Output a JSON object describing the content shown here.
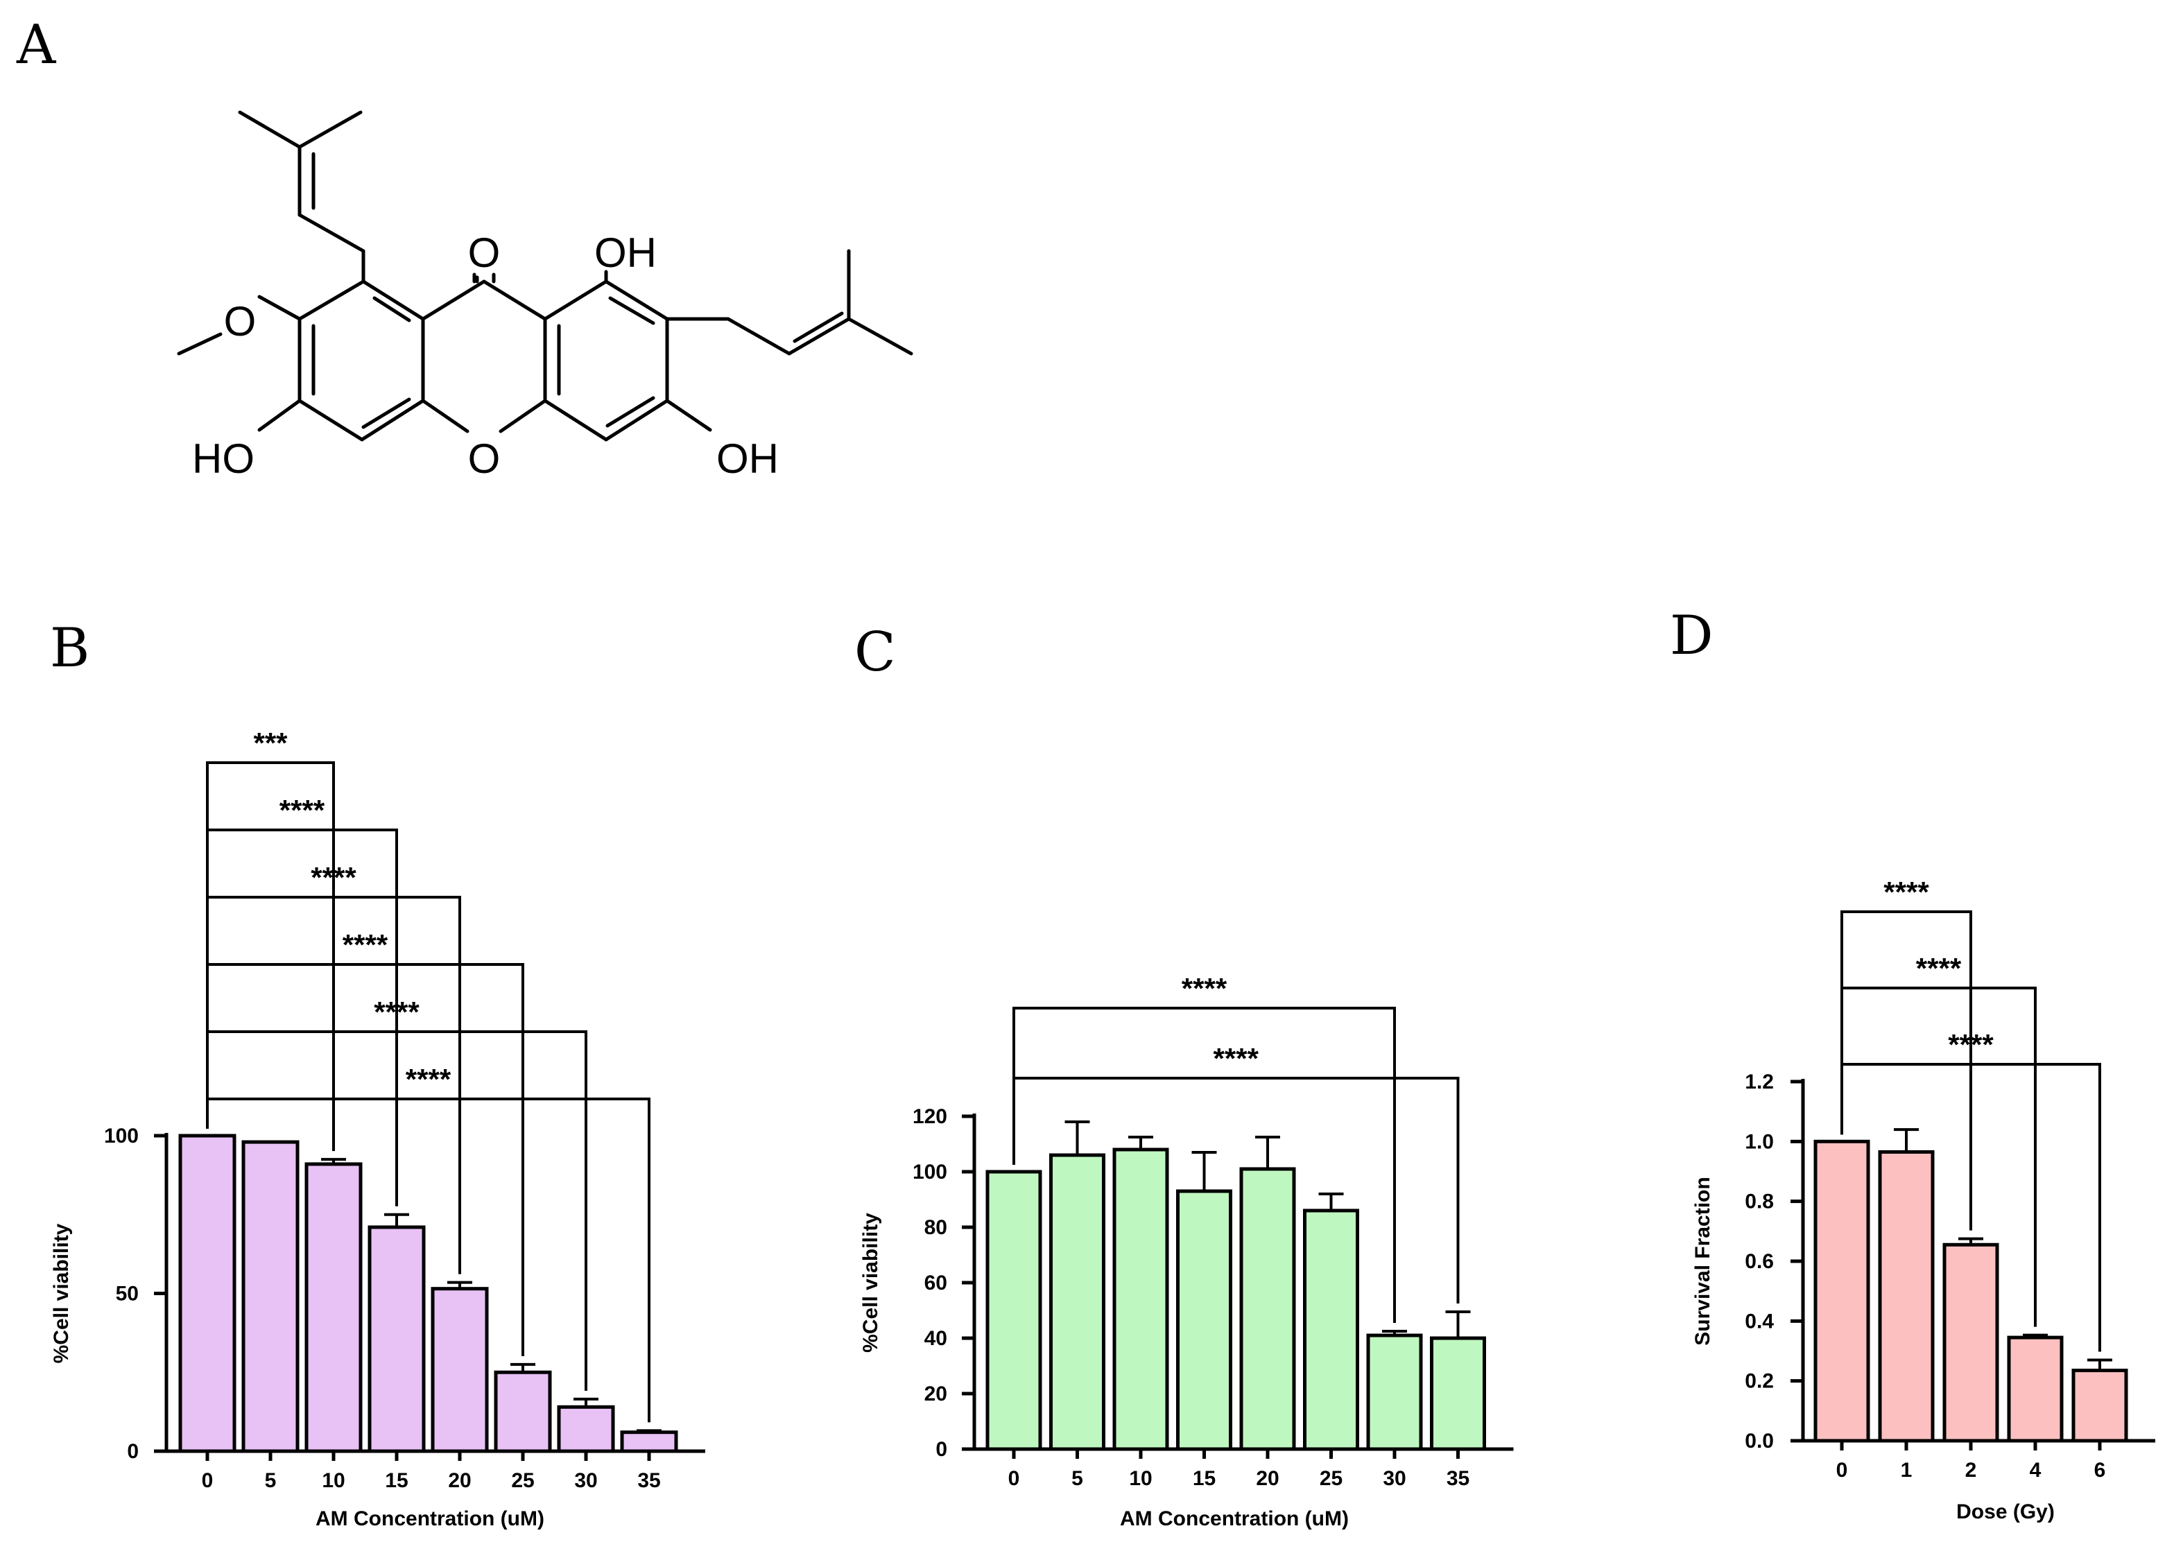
{
  "panels": {
    "a": "A",
    "b": "B",
    "c": "C",
    "d": "D"
  },
  "molecule": {
    "atoms": {
      "ketone_o": "O",
      "oh_top": "OH",
      "ring_o": "O",
      "oh_left": "HO",
      "oh_right": "OH",
      "methoxy_o": "O"
    }
  },
  "chart_data": [
    {
      "panel": "B",
      "type": "bar",
      "categories": [
        "0",
        "5",
        "10",
        "15",
        "20",
        "25",
        "30",
        "35"
      ],
      "values": [
        100,
        98,
        91,
        71,
        51.5,
        25,
        14,
        6
      ],
      "errors": [
        0,
        0,
        1.5,
        4,
        2,
        2.5,
        2.5,
        0.5
      ],
      "xlabel": "AM Concentration (uM)",
      "ylabel": "%Cell viability",
      "ylim": [
        0,
        100
      ],
      "yticks": [
        0,
        50,
        100
      ],
      "color": "#e8c1f5",
      "significance": [
        {
          "from": "0",
          "to": "10",
          "label": "***"
        },
        {
          "from": "0",
          "to": "15",
          "label": "****"
        },
        {
          "from": "0",
          "to": "20",
          "label": "****"
        },
        {
          "from": "0",
          "to": "25",
          "label": "****"
        },
        {
          "from": "0",
          "to": "30",
          "label": "****"
        },
        {
          "from": "0",
          "to": "35",
          "label": "****"
        }
      ]
    },
    {
      "panel": "C",
      "type": "bar",
      "categories": [
        "0",
        "5",
        "10",
        "15",
        "20",
        "25",
        "30",
        "35"
      ],
      "values": [
        100,
        106,
        108,
        93,
        101,
        86,
        41,
        40
      ],
      "errors": [
        0,
        12,
        4.5,
        14,
        11.5,
        6,
        1.5,
        9.5
      ],
      "xlabel": "AM Concentration (uM)",
      "ylabel": "%Cell viability",
      "ylim": [
        0,
        120
      ],
      "yticks": [
        0,
        20,
        40,
        60,
        80,
        100,
        120
      ],
      "color": "#bff7c0",
      "significance": [
        {
          "from": "0",
          "to": "30",
          "label": "****"
        },
        {
          "from": "0",
          "to": "35",
          "label": "****"
        }
      ]
    },
    {
      "panel": "D",
      "type": "bar",
      "categories": [
        "0",
        "1",
        "2",
        "4",
        "6"
      ],
      "values": [
        1.0,
        0.965,
        0.655,
        0.345,
        0.235
      ],
      "errors": [
        0,
        0.075,
        0.02,
        0.008,
        0.035
      ],
      "xlabel": "Dose (Gy)",
      "ylabel": "Survival Fraction",
      "ylim": [
        0,
        1.2
      ],
      "yticks": [
        "0.0",
        "0.2",
        "0.4",
        "0.6",
        "0.8",
        "1.0",
        "1.2"
      ],
      "color": "#fcc0c0",
      "significance": [
        {
          "from": "0",
          "to": "2",
          "label": "****"
        },
        {
          "from": "0",
          "to": "4",
          "label": "****"
        },
        {
          "from": "0",
          "to": "6",
          "label": "****"
        }
      ]
    }
  ]
}
